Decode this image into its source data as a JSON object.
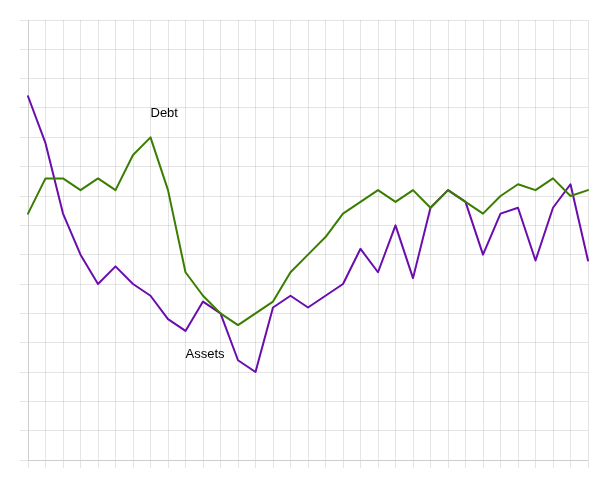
{
  "chart_data": {
    "type": "line",
    "categories": [
      null,
      null,
      null,
      null,
      null,
      null,
      null,
      null,
      null,
      null,
      null,
      null,
      null,
      null,
      null,
      null,
      null,
      null,
      null,
      null,
      null,
      null,
      null,
      null,
      null,
      null,
      null,
      null,
      null,
      null,
      null,
      null,
      null
    ],
    "series": [
      {
        "color": "#3a7d00",
        "values": [
          0.62,
          0.68,
          0.68,
          0.66,
          0.68,
          0.66,
          0.72,
          0.75,
          0.66,
          0.52,
          0.48,
          0.45,
          0.43,
          0.45,
          0.47,
          0.52,
          0.55,
          0.58,
          0.62,
          0.64,
          0.66,
          0.64,
          0.66,
          0.63,
          0.66,
          0.64,
          0.62,
          0.65,
          0.67,
          0.66,
          0.68,
          0.65,
          0.66
        ]
      },
      {
        "color": "#6a0dad",
        "values": [
          0.82,
          0.74,
          0.62,
          0.55,
          0.5,
          0.53,
          0.5,
          0.48,
          0.44,
          0.42,
          0.47,
          0.45,
          0.37,
          0.35,
          0.46,
          0.48,
          0.46,
          0.48,
          0.5,
          0.56,
          0.52,
          0.6,
          0.51,
          0.63,
          0.66,
          0.64,
          0.55,
          0.62,
          0.63,
          0.54,
          0.63,
          0.67,
          0.54
        ]
      }
    ],
    "annotations": [
      {
        "text": "Debt",
        "x": 7,
        "y": 0.79
      },
      {
        "text": "Assets",
        "x": 9,
        "y": 0.38
      }
    ],
    "ylim": [
      0.2,
      0.95
    ],
    "yticks": [
      0.2,
      0.25,
      0.3,
      0.35,
      0.4,
      0.45,
      0.5,
      0.55,
      0.6,
      0.65,
      0.7,
      0.75,
      0.8,
      0.85,
      0.9,
      0.95
    ],
    "grid": true,
    "tick_labels": false
  }
}
